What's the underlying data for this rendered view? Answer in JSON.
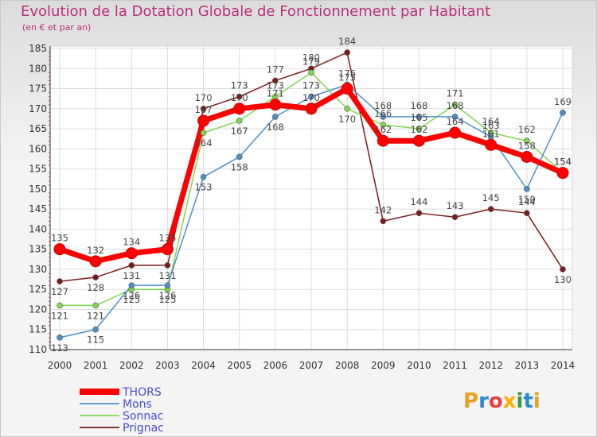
{
  "title": "Evolution de la Dotation Globale de Fonctionnement par Habitant",
  "subtitle": "(en € et par an)",
  "logo": "Proxiti",
  "chart_data": {
    "type": "line",
    "title": "Evolution de la Dotation Globale de Fonctionnement par Habitant",
    "subtitle": "(en € et par an)",
    "xlabel": "",
    "ylabel": "",
    "x": [
      "2000",
      "2001",
      "2002",
      "2003",
      "2004",
      "2005",
      "2006",
      "2007",
      "2008",
      "2009",
      "2010",
      "2011",
      "2012",
      "2013",
      "2014"
    ],
    "ylim": [
      110,
      185
    ],
    "yticks": [
      110,
      115,
      120,
      125,
      130,
      135,
      140,
      145,
      150,
      155,
      160,
      165,
      170,
      175,
      180,
      185
    ],
    "grid": true,
    "series": [
      {
        "name": "THORS",
        "color": "#ff0000",
        "values": [
          135,
          132,
          134,
          135,
          167,
          170,
          171,
          170,
          175,
          162,
          162,
          164,
          161,
          158,
          154
        ]
      },
      {
        "name": "Mons",
        "color": "#4f8fc8",
        "values": [
          113,
          115,
          126,
          126,
          153,
          158,
          168,
          173,
          176,
          168,
          168,
          168,
          163,
          150,
          169
        ]
      },
      {
        "name": "Sonnac",
        "color": "#80d850",
        "values": [
          121,
          121,
          125,
          125,
          164,
          167,
          173,
          179,
          170,
          166,
          165,
          171,
          164,
          162,
          154
        ]
      },
      {
        "name": "Prignac",
        "color": "#7a1c1c",
        "values": [
          127,
          128,
          131,
          131,
          170,
          173,
          177,
          180,
          184,
          142,
          144,
          143,
          145,
          144,
          130
        ]
      }
    ]
  }
}
